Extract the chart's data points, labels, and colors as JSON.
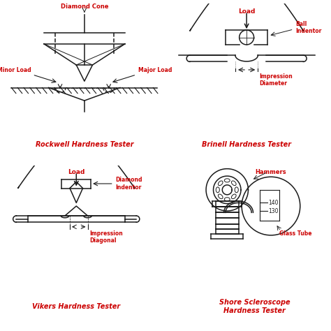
{
  "bg_color": "#ffffff",
  "line_color": "#1a1a1a",
  "label_color": "#cc0000",
  "title_rockwell": "Rockwell Hardness Tester",
  "title_brinell": "Brinell Hardness Tester",
  "title_vikers": "Vikers Hardness Tester",
  "title_shore": "Shore Scleroscope\nHardness Tester",
  "label_diamond_cone": "Diamond Cone",
  "label_minor_load": "Minor Load",
  "label_major_load": "Major Load",
  "label_load_b": "Load",
  "label_ball_indentor": "Ball\nIndentor",
  "label_impression_diameter": "Impression\nDiameter",
  "label_load_v": "Load",
  "label_diamond_indentor": "Diamond\nIndentor",
  "label_impression_diagonal": "Impression\nDiagonal",
  "label_hammers": "Hammers",
  "label_glass_tube": "Glass Tube",
  "label_140": "140",
  "label_130": "130"
}
